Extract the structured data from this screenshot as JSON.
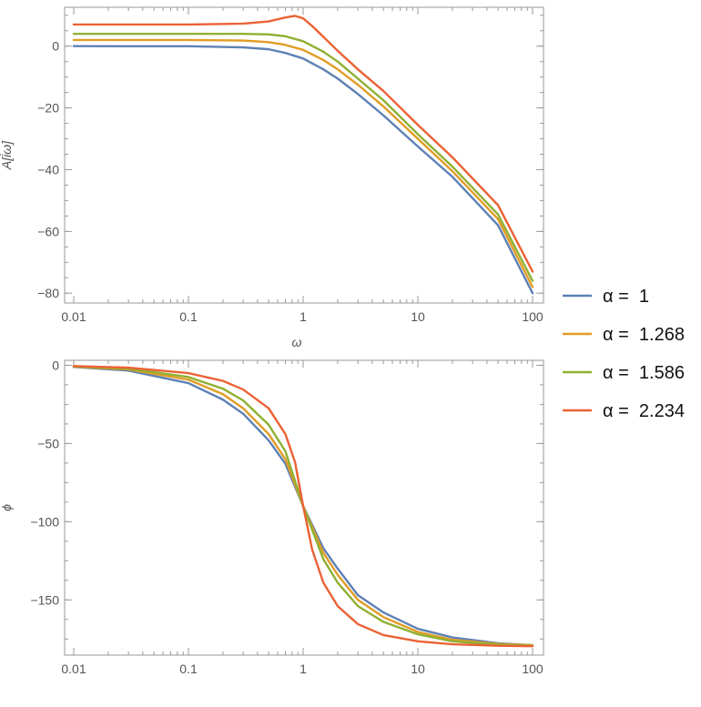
{
  "chart_data": [
    {
      "type": "line",
      "id": "amplitude",
      "title": "",
      "xlabel": "ω",
      "ylabel": "A[i̇ω]",
      "xscale": "log",
      "xlim": [
        0.01,
        100
      ],
      "ylim": [
        -82,
        12
      ],
      "x_ticks": [
        0.01,
        0.1,
        1,
        10,
        100
      ],
      "x_tick_labels": [
        "0.01",
        "0.1",
        "1",
        "10",
        "100"
      ],
      "y_ticks": [
        0,
        -20,
        -40,
        -60,
        -80
      ],
      "y_tick_labels": [
        "0",
        "−20",
        "−40",
        "−60",
        "−80"
      ],
      "grid": false,
      "series": [
        {
          "name": "α = 1",
          "color": "#5e81b5",
          "x": [
            0.01,
            0.1,
            0.3,
            0.5,
            0.7,
            1,
            1.5,
            2,
            3,
            5,
            10,
            20,
            50,
            100
          ],
          "y": [
            0,
            -0.04,
            -0.4,
            -1.0,
            -2.2,
            -4,
            -7.5,
            -10.5,
            -15.5,
            -22.4,
            -32.5,
            -42.3,
            -58,
            -80
          ]
        },
        {
          "name": "α = 1.268",
          "color": "#e19c24",
          "x": [
            0.01,
            0.1,
            0.3,
            0.5,
            0.7,
            1,
            1.5,
            2,
            3,
            5,
            10,
            20,
            50,
            100
          ],
          "y": [
            2,
            2,
            1.8,
            1.3,
            0.4,
            -1.2,
            -4.5,
            -7.5,
            -12.5,
            -19.5,
            -30,
            -40.5,
            -56,
            -78
          ]
        },
        {
          "name": "α = 1.586",
          "color": "#8fb032",
          "x": [
            0.01,
            0.1,
            0.3,
            0.5,
            0.7,
            1,
            1.5,
            2,
            3,
            5,
            10,
            20,
            50,
            100
          ],
          "y": [
            4,
            4,
            4,
            3.8,
            3.2,
            1.6,
            -1.8,
            -5,
            -10.5,
            -17.5,
            -28.5,
            -39,
            -54.5,
            -76
          ]
        },
        {
          "name": "α = 2.234",
          "color": "#eb6235",
          "x": [
            0.01,
            0.1,
            0.3,
            0.5,
            0.7,
            0.85,
            1,
            1.2,
            1.5,
            2,
            3,
            5,
            10,
            20,
            50,
            100
          ],
          "y": [
            7,
            7,
            7.3,
            8,
            9.3,
            9.8,
            9,
            6.5,
            3,
            -1.5,
            -7.5,
            -14.5,
            -25.5,
            -36,
            -51.5,
            -73
          ]
        }
      ]
    },
    {
      "type": "line",
      "id": "phase",
      "title": "",
      "xlabel": "",
      "ylabel": "ϕ",
      "xscale": "log",
      "xlim": [
        0.01,
        100
      ],
      "ylim": [
        -183,
        2
      ],
      "x_ticks": [
        0.01,
        0.1,
        1,
        10,
        100
      ],
      "x_tick_labels": [
        "0.01",
        "0.1",
        "1",
        "10",
        "100"
      ],
      "y_ticks": [
        0,
        -50,
        -100,
        -150
      ],
      "y_tick_labels": [
        "0",
        "−50",
        "−100",
        "−150"
      ],
      "grid": false,
      "series": [
        {
          "name": "α = 1",
          "color": "#5e81b5",
          "x": [
            0.01,
            0.03,
            0.1,
            0.2,
            0.3,
            0.5,
            0.7,
            1,
            1.5,
            2,
            3,
            5,
            10,
            20,
            50,
            100
          ],
          "y": [
            -1.1,
            -3.4,
            -11.4,
            -22,
            -31,
            -48,
            -63,
            -90,
            -117,
            -130,
            -147,
            -158,
            -168.5,
            -174,
            -177.7,
            -179
          ]
        },
        {
          "name": "α = 1.268",
          "color": "#e19c24",
          "x": [
            0.01,
            0.03,
            0.1,
            0.2,
            0.3,
            0.5,
            0.7,
            1,
            1.5,
            2,
            3,
            5,
            10,
            20,
            50,
            100
          ],
          "y": [
            -0.9,
            -2.7,
            -9.2,
            -18.5,
            -27.5,
            -44,
            -60,
            -90,
            -120,
            -134,
            -150,
            -161,
            -170.5,
            -175.5,
            -178.2,
            -179
          ]
        },
        {
          "name": "α = 1.586",
          "color": "#8fb032",
          "x": [
            0.01,
            0.03,
            0.1,
            0.2,
            0.3,
            0.5,
            0.7,
            1,
            1.5,
            2,
            3,
            5,
            10,
            20,
            50,
            100
          ],
          "y": [
            -0.7,
            -2.2,
            -7.5,
            -15,
            -22.5,
            -38,
            -55,
            -90,
            -124,
            -139,
            -154,
            -164,
            -172,
            -176.5,
            -178.6,
            -179.3
          ]
        },
        {
          "name": "α = 2.234",
          "color": "#eb6235",
          "x": [
            0.01,
            0.03,
            0.1,
            0.2,
            0.3,
            0.5,
            0.7,
            0.85,
            1,
            1.2,
            1.5,
            2,
            3,
            5,
            10,
            20,
            50,
            100
          ],
          "y": [
            -0.5,
            -1.5,
            -5,
            -10,
            -15.5,
            -27.5,
            -44,
            -62,
            -90,
            -118,
            -139,
            -154,
            -165.5,
            -172.5,
            -176.5,
            -178.4,
            -179.3,
            -179.6
          ]
        }
      ]
    }
  ],
  "legend": {
    "placement": "right",
    "entries": [
      {
        "label": "α =  1",
        "color": "#5e81b5"
      },
      {
        "label": "α =  1.268",
        "color": "#e19c24"
      },
      {
        "label": "α =  1.586",
        "color": "#8fb032"
      },
      {
        "label": "α =  2.234",
        "color": "#eb6235"
      }
    ]
  },
  "colors": {
    "frame": "#999999",
    "text": "#555555"
  }
}
